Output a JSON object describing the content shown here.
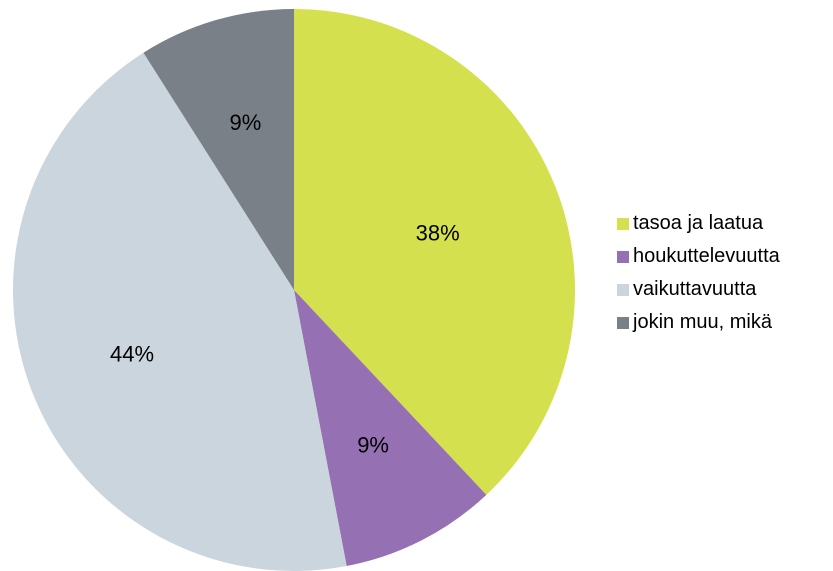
{
  "chart_data": {
    "type": "pie",
    "categories": [
      "tasoa ja laatua",
      "houkuttelevuutta",
      "vaikuttavuutta",
      "jokin muu, mikä"
    ],
    "values": [
      38,
      9,
      44,
      9
    ],
    "data_labels": [
      "38%",
      "9%",
      "44%",
      "9%"
    ],
    "colors": [
      "#d4e04d",
      "#9570b2",
      "#cbd5de",
      "#7a8088"
    ],
    "legend": "right",
    "start_angle": "12 o'clock",
    "direction": "clockwise"
  }
}
